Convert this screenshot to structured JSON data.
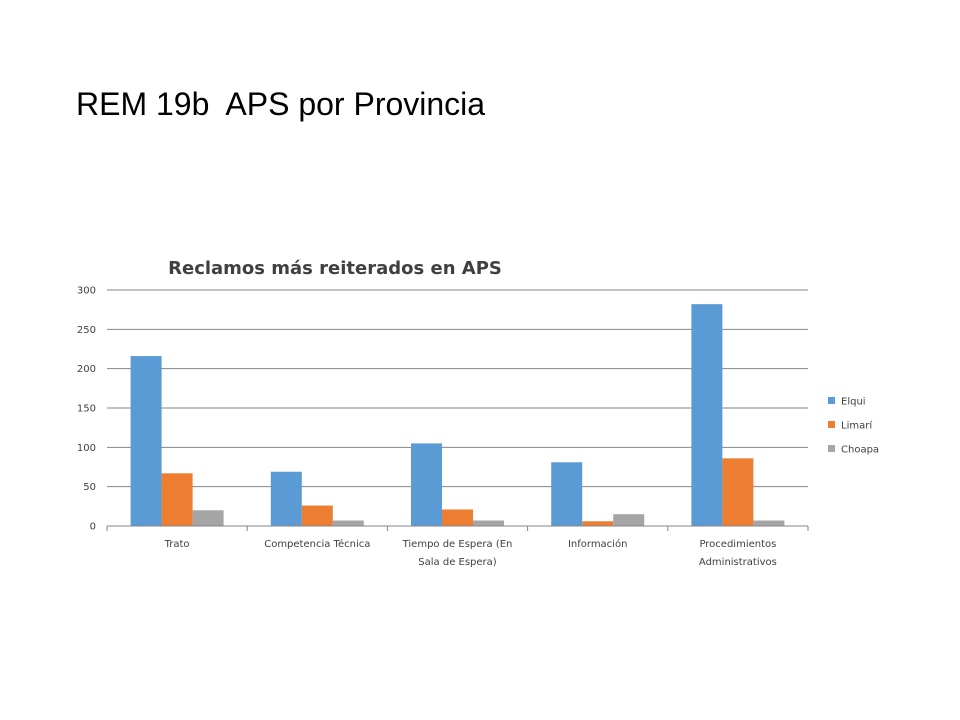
{
  "slide": {
    "title": "REM 19b  APS por Provincia"
  },
  "chart_data": {
    "type": "bar",
    "title": "Reclamos  más reiterados en APS",
    "xlabel": "",
    "ylabel": "",
    "ylim": [
      0,
      300
    ],
    "yticks": [
      0,
      50,
      100,
      150,
      200,
      250,
      300
    ],
    "grid": true,
    "legend_position": "right",
    "categories": [
      [
        "Trato"
      ],
      [
        "Competencia Técnica"
      ],
      [
        "Tiempo de Espera (En",
        "Sala de Espera)"
      ],
      [
        "Información"
      ],
      [
        "Procedimientos",
        "Administrativos"
      ]
    ],
    "series": [
      {
        "name": "Elqui",
        "color": "#5B9BD5",
        "values": [
          216,
          69,
          105,
          81,
          282
        ]
      },
      {
        "name": "Limarí",
        "color": "#ED7D31",
        "values": [
          67,
          26,
          21,
          6,
          86
        ]
      },
      {
        "name": "Choapa",
        "color": "#A5A5A5",
        "values": [
          20,
          7,
          7,
          15,
          7
        ]
      }
    ]
  }
}
